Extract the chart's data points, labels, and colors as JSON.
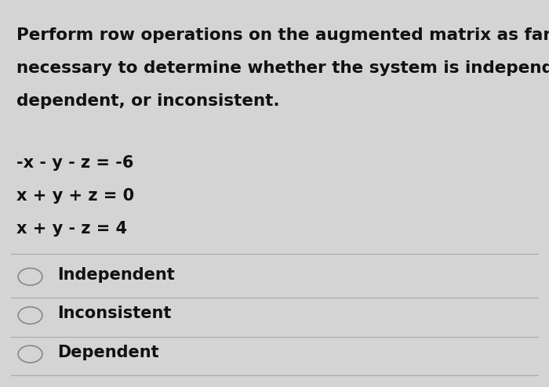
{
  "background_color": "#d4d4d4",
  "title_lines": [
    "Perform row operations on the augmented matrix as far as",
    "necessary to determine whether the system is independent,",
    "dependent, or inconsistent."
  ],
  "equations": [
    "-x - y - z = -6",
    "x + y + z = 0",
    "x + y - z = 4"
  ],
  "options": [
    "Independent",
    "Inconsistent",
    "Dependent"
  ],
  "title_fontsize": 15.5,
  "eq_fontsize": 15,
  "option_fontsize": 15,
  "text_color": "#111111",
  "line_color": "#aaaaaa"
}
